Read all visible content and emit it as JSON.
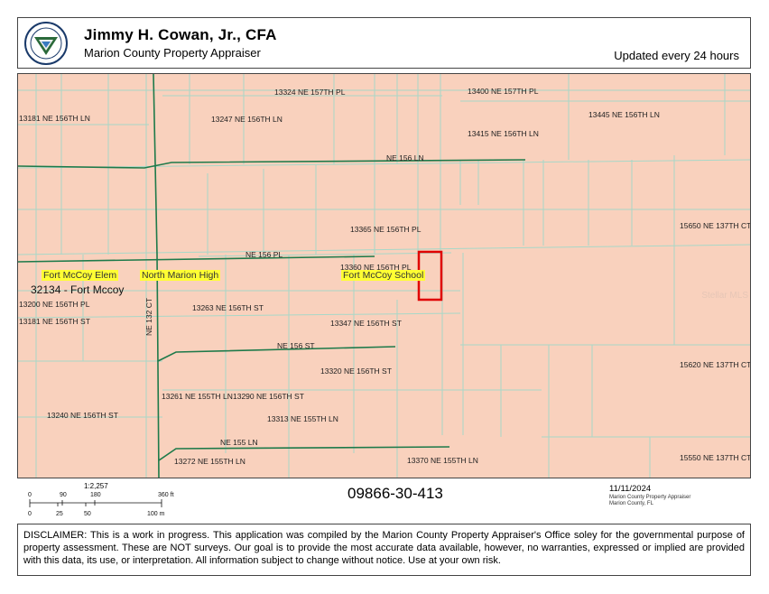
{
  "header": {
    "title": "Jimmy H. Cowan, Jr., CFA",
    "subtitle": "Marion County Property Appraiser",
    "updated": "Updated every 24 hours"
  },
  "map": {
    "fill_color": "#f9d1bd",
    "line_color": "#a8d8c8",
    "road_color": "#1e7a4a",
    "highlight_color": "#e00000",
    "labels": {
      "a13324": "13324 NE 157TH PL",
      "a13400": "13400 NE 157TH PL",
      "a13181ln": "13181 NE 156TH LN",
      "a13247": "13247 NE 156TH LN",
      "a13445": "13445 NE 156TH LN",
      "a13415": "13415 NE 156TH LN",
      "a13365": "13365 NE 156TH PL",
      "a15650": "15650 NE 137TH CT",
      "a13360": "13360 NE 156TH PL",
      "a13200": "13200 NE 156TH PL",
      "a13263": "13263 NE 156TH ST",
      "a13181st": "13181 NE 156TH ST",
      "a13347": "13347 NE 156TH ST",
      "a13320": "13320 NE 156TH ST",
      "a15620": "15620 NE 137TH CT",
      "a13261": "13261 NE 155TH LN",
      "a13290": "13290 NE 156TH ST",
      "a13240": "13240 NE 156TH ST",
      "a13313": "13313 NE 155TH LN",
      "a13272": "13272 NE 155TH LN",
      "a13370": "13370 NE 155TH LN",
      "a15550": "15550 NE 137TH CT"
    },
    "roads": {
      "ne156ln": "NE 156 LN",
      "ne156pl": "NE 156 PL",
      "ne156st": "NE 156 ST",
      "ne155ln": "NE 155 LN",
      "ne132ct": "NE 132 CT"
    },
    "poi": {
      "elem": "Fort McCoy Elem",
      "high": "North Marion High",
      "school": "Fort McCoy School"
    },
    "zip": "32134 - Fort Mccoy",
    "watermark": "Stellar MLS"
  },
  "footer": {
    "scale_ratio": "1:2,257",
    "ft_ticks": [
      "0",
      "90",
      "180",
      "360 ft"
    ],
    "m_ticks": [
      "0",
      "25",
      "50",
      "100 m"
    ],
    "parcel_id": "09866-30-413",
    "date": "11/11/2024",
    "credit_line1": "Marion County Property Appraiser",
    "credit_line2": "Marion County, FL"
  },
  "disclaimer": "DISCLAIMER: This is a work in progress. This application was compiled by the Marion County Property Appraiser's Office soley for the governmental purpose of property assessment. These are NOT surveys. Our goal is to provide the most accurate data available, however, no warranties, expressed or implied are provided with this data, its use, or interpretation. All information subject to change without notice. Use at your own risk."
}
